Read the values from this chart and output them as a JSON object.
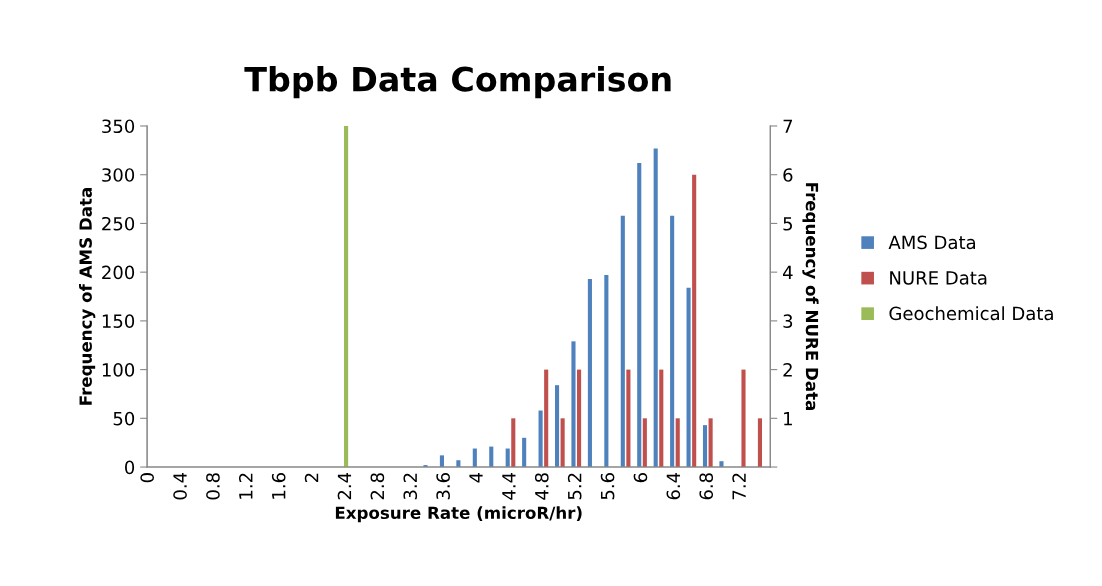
{
  "chart_data": {
    "type": "bar",
    "title": "Tbpb Data Comparison",
    "xlabel": "Exposure Rate (microR/hr)",
    "ylabel": "Frequency of AMS Data",
    "y2label": "Frequency of NURE Data",
    "categories": [
      "0",
      null,
      "0.4",
      null,
      "0.8",
      null,
      "1.2",
      null,
      "1.6",
      null,
      "2",
      null,
      "2.4",
      null,
      "2.8",
      null,
      "3.2",
      null,
      "3.6",
      null,
      "4",
      null,
      "4.4",
      null,
      "4.8",
      null,
      "5.2",
      null,
      "5.6",
      null,
      "6",
      null,
      "6.4",
      null,
      "6.8",
      null,
      "7.2",
      null
    ],
    "series": [
      {
        "name": "AMS Data",
        "color": "#4f81bd",
        "values": [
          0,
          0,
          0,
          0,
          0,
          0,
          0,
          0,
          0,
          0,
          0,
          0,
          0,
          0,
          0,
          0,
          0,
          2,
          12,
          7,
          19,
          21,
          19,
          30,
          58,
          84,
          129,
          193,
          197,
          258,
          312,
          327,
          258,
          184,
          43,
          6,
          0,
          0
        ]
      },
      {
        "name": "NURE Data",
        "color": "#c0504d",
        "axis": "y2",
        "values": [
          0,
          0,
          0,
          0,
          0,
          0,
          0,
          0,
          0,
          0,
          0,
          0,
          0,
          0,
          0,
          0,
          0,
          0,
          0,
          0,
          0,
          0,
          1,
          0,
          2,
          1,
          2,
          0,
          0,
          2,
          1,
          2,
          1,
          6,
          1,
          0,
          2,
          1
        ]
      },
      {
        "name": "Geochemical Data",
        "color": "#9bbb59",
        "axis": "y2",
        "values": [
          0,
          0,
          0,
          0,
          0,
          0,
          0,
          0,
          0,
          0,
          0,
          0,
          7,
          0,
          0,
          0,
          0,
          0,
          0,
          0,
          0,
          0,
          0,
          0,
          0,
          0,
          0,
          0,
          0,
          0,
          0,
          0,
          0,
          0,
          0,
          0,
          0,
          0
        ]
      }
    ],
    "ylim": [
      0,
      350
    ],
    "yticks": [
      0,
      50,
      100,
      150,
      200,
      250,
      300,
      350
    ],
    "y2lim": [
      0,
      7
    ],
    "y2ticks": [
      {
        "value": 0,
        "label": null
      },
      1,
      2,
      3,
      4,
      5,
      6,
      7
    ],
    "grid": false,
    "legend": "right"
  }
}
